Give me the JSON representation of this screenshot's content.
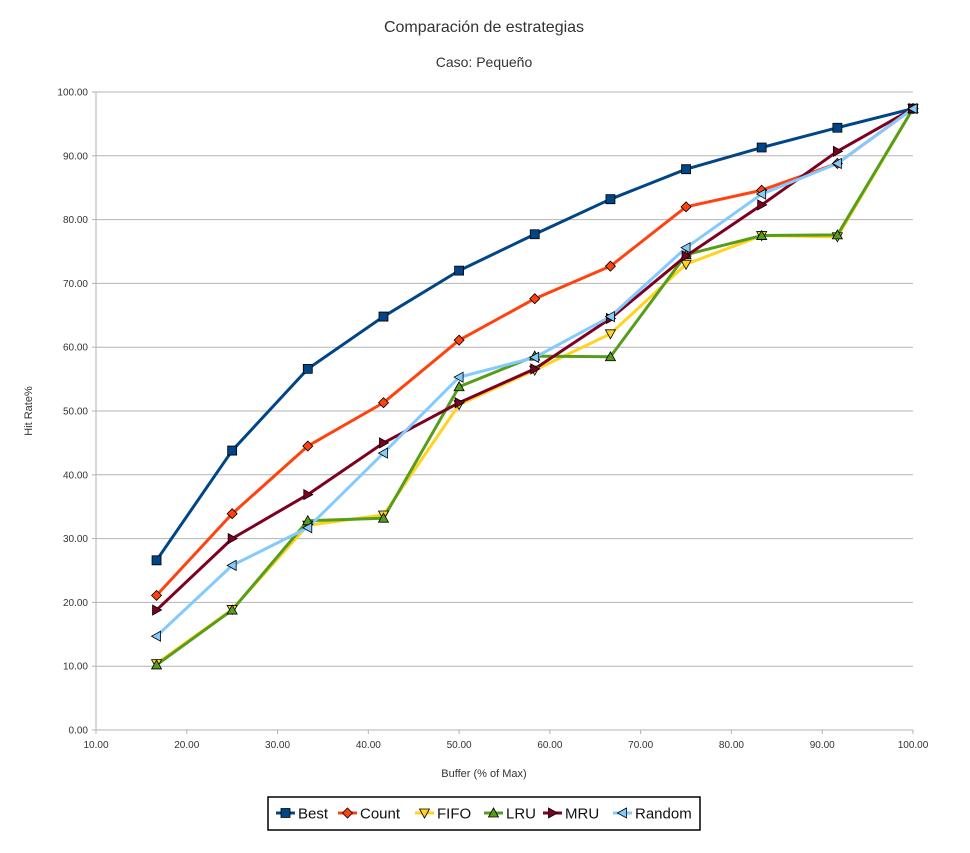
{
  "chart_data": {
    "type": "line",
    "title": "Comparación de estrategias",
    "subtitle": "Caso: Pequeño",
    "xlabel": "Buffer (% of Max)",
    "ylabel": "Hit Rate%",
    "xlim": [
      10,
      100
    ],
    "ylim": [
      0,
      100
    ],
    "xticks": [
      "10.00",
      "20.00",
      "30.00",
      "40.00",
      "50.00",
      "60.00",
      "70.00",
      "80.00",
      "90.00",
      "100.00"
    ],
    "yticks": [
      "0.00",
      "10.00",
      "20.00",
      "30.00",
      "40.00",
      "50.00",
      "60.00",
      "70.00",
      "80.00",
      "90.00",
      "100.00"
    ],
    "grid": "horizontal",
    "legend_position": "bottom",
    "x": [
      16.67,
      25.0,
      33.33,
      41.67,
      50.0,
      58.33,
      66.67,
      75.0,
      83.33,
      91.67,
      100.0
    ],
    "series": [
      {
        "name": "Best",
        "color": "#004586",
        "marker": "square",
        "values": [
          26.6,
          43.8,
          56.6,
          64.8,
          72.0,
          77.7,
          83.2,
          87.9,
          91.3,
          94.4,
          97.4
        ]
      },
      {
        "name": "Count",
        "color": "#ff420e",
        "marker": "diamond",
        "values": [
          21.1,
          33.9,
          44.5,
          51.3,
          61.1,
          67.6,
          72.7,
          82.0,
          84.6,
          88.8,
          97.4
        ]
      },
      {
        "name": "FIFO",
        "color": "#ffd320",
        "marker": "triangle-down",
        "values": [
          10.4,
          18.9,
          32.1,
          33.7,
          51.0,
          56.4,
          62.1,
          73.0,
          77.5,
          77.3,
          97.4
        ]
      },
      {
        "name": "LRU",
        "color": "#579d1c",
        "marker": "triangle-up",
        "values": [
          10.2,
          18.8,
          32.8,
          33.2,
          53.8,
          58.6,
          58.5,
          74.5,
          77.5,
          77.6,
          97.4
        ]
      },
      {
        "name": "MRU",
        "color": "#7e0021",
        "marker": "triangle-right",
        "values": [
          18.8,
          30.0,
          36.9,
          45.0,
          51.3,
          56.6,
          64.5,
          74.3,
          82.3,
          90.7,
          97.4
        ]
      },
      {
        "name": "Random",
        "color": "#83caff",
        "marker": "triangle-left",
        "values": [
          14.7,
          25.8,
          31.7,
          43.4,
          55.3,
          58.4,
          64.8,
          75.6,
          84.0,
          88.8,
          97.4
        ]
      }
    ]
  }
}
